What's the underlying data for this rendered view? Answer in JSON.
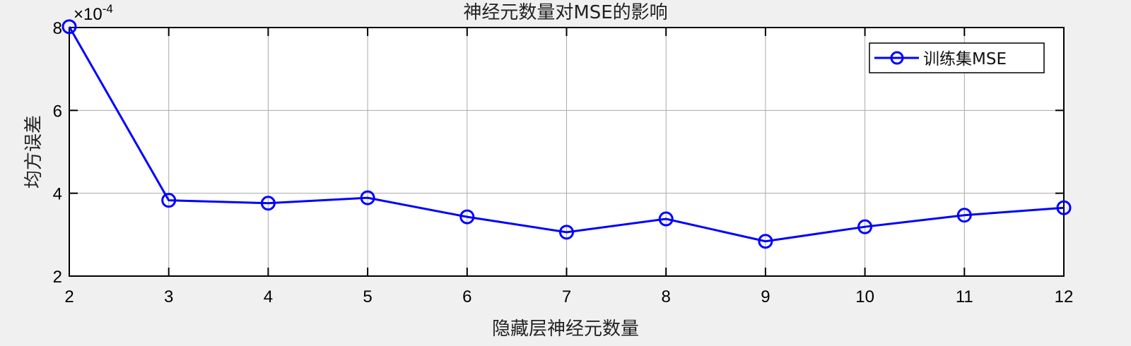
{
  "chart_data": {
    "type": "line",
    "title": "神经元数量对MSE的影响",
    "xlabel": "隐藏层神经元数量",
    "ylabel": "均方误差",
    "y_exponent_label": "×10",
    "y_exponent": "-4",
    "x": [
      2,
      3,
      4,
      5,
      6,
      7,
      8,
      9,
      10,
      11,
      12
    ],
    "xlim": [
      2,
      12
    ],
    "ylim": [
      2,
      8
    ],
    "xticks": [
      "2",
      "3",
      "4",
      "5",
      "6",
      "7",
      "8",
      "9",
      "10",
      "11",
      "12"
    ],
    "yticks": [
      "2",
      "4",
      "6",
      "8"
    ],
    "grid": true,
    "legend_position": "top-right",
    "series": [
      {
        "name": "训练集MSE",
        "color": "#0000ff",
        "marker": "circle",
        "values": [
          8.02,
          3.83,
          3.76,
          3.89,
          3.43,
          3.06,
          3.38,
          2.84,
          3.19,
          3.47,
          3.65
        ]
      }
    ]
  }
}
